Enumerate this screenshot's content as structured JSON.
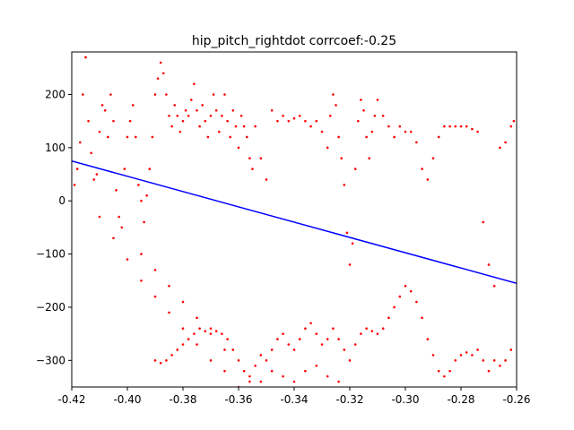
{
  "chart_data": {
    "type": "scatter",
    "title": "hip_pitch_rightdot corrcoef:-0.25",
    "xlabel": "",
    "ylabel": "",
    "xlim": [
      -0.42,
      -0.26
    ],
    "ylim": [
      -350,
      280
    ],
    "x_ticks": [
      "-0.42",
      "-0.40",
      "-0.38",
      "-0.36",
      "-0.34",
      "-0.32",
      "-0.30",
      "-0.28",
      "-0.26"
    ],
    "x_tick_values": [
      -0.42,
      -0.4,
      -0.38,
      -0.36,
      -0.34,
      -0.32,
      -0.3,
      -0.28,
      -0.26
    ],
    "y_ticks": [
      "200",
      "100",
      "0",
      "−100",
      "−200",
      "−300"
    ],
    "y_tick_values": [
      200,
      100,
      0,
      -100,
      -200,
      -300
    ],
    "grid": false,
    "colors": {
      "points": "#ff0000",
      "fit_line": "#0000ff"
    },
    "fit_line": {
      "x": [
        -0.42,
        -0.26
      ],
      "y": [
        75,
        -155
      ]
    },
    "series": [
      {
        "type": "scatter",
        "points": [
          [
            -0.419,
            30
          ],
          [
            -0.418,
            60
          ],
          [
            -0.417,
            110
          ],
          [
            -0.416,
            200
          ],
          [
            -0.415,
            270
          ],
          [
            -0.414,
            150
          ],
          [
            -0.413,
            90
          ],
          [
            -0.412,
            40
          ],
          [
            -0.411,
            50
          ],
          [
            -0.41,
            130
          ],
          [
            -0.409,
            180
          ],
          [
            -0.408,
            170
          ],
          [
            -0.407,
            120
          ],
          [
            -0.406,
            200
          ],
          [
            -0.405,
            150
          ],
          [
            -0.404,
            20
          ],
          [
            -0.403,
            -30
          ],
          [
            -0.402,
            -50
          ],
          [
            -0.401,
            60
          ],
          [
            -0.4,
            120
          ],
          [
            -0.399,
            150
          ],
          [
            -0.398,
            180
          ],
          [
            -0.397,
            120
          ],
          [
            -0.396,
            30
          ],
          [
            -0.395,
            0
          ],
          [
            -0.394,
            -40
          ],
          [
            -0.393,
            10
          ],
          [
            -0.392,
            60
          ],
          [
            -0.391,
            120
          ],
          [
            -0.39,
            200
          ],
          [
            -0.389,
            230
          ],
          [
            -0.388,
            260
          ],
          [
            -0.387,
            240
          ],
          [
            -0.386,
            200
          ],
          [
            -0.385,
            160
          ],
          [
            -0.384,
            140
          ],
          [
            -0.383,
            180
          ],
          [
            -0.382,
            160
          ],
          [
            -0.381,
            130
          ],
          [
            -0.38,
            150
          ],
          [
            -0.379,
            170
          ],
          [
            -0.378,
            160
          ],
          [
            -0.377,
            190
          ],
          [
            -0.376,
            220
          ],
          [
            -0.375,
            170
          ],
          [
            -0.374,
            140
          ],
          [
            -0.373,
            180
          ],
          [
            -0.372,
            150
          ],
          [
            -0.371,
            120
          ],
          [
            -0.37,
            160
          ],
          [
            -0.369,
            200
          ],
          [
            -0.368,
            170
          ],
          [
            -0.367,
            130
          ],
          [
            -0.366,
            160
          ],
          [
            -0.365,
            200
          ],
          [
            -0.364,
            150
          ],
          [
            -0.363,
            120
          ],
          [
            -0.362,
            170
          ],
          [
            -0.361,
            140
          ],
          [
            -0.36,
            100
          ],
          [
            -0.359,
            160
          ],
          [
            -0.358,
            140
          ],
          [
            -0.357,
            120
          ],
          [
            -0.356,
            80
          ],
          [
            -0.355,
            60
          ],
          [
            -0.354,
            140
          ],
          [
            -0.352,
            80
          ],
          [
            -0.35,
            40
          ],
          [
            -0.348,
            170
          ],
          [
            -0.346,
            150
          ],
          [
            -0.344,
            160
          ],
          [
            -0.342,
            150
          ],
          [
            -0.34,
            155
          ],
          [
            -0.338,
            160
          ],
          [
            -0.336,
            150
          ],
          [
            -0.334,
            140
          ],
          [
            -0.332,
            150
          ],
          [
            -0.33,
            130
          ],
          [
            -0.328,
            100
          ],
          [
            -0.327,
            160
          ],
          [
            -0.326,
            200
          ],
          [
            -0.325,
            180
          ],
          [
            -0.324,
            120
          ],
          [
            -0.323,
            80
          ],
          [
            -0.322,
            30
          ],
          [
            -0.321,
            -60
          ],
          [
            -0.32,
            -120
          ],
          [
            -0.319,
            -80
          ],
          [
            -0.318,
            60
          ],
          [
            -0.317,
            150
          ],
          [
            -0.316,
            190
          ],
          [
            -0.315,
            170
          ],
          [
            -0.314,
            120
          ],
          [
            -0.313,
            80
          ],
          [
            -0.312,
            130
          ],
          [
            -0.311,
            160
          ],
          [
            -0.31,
            190
          ],
          [
            -0.308,
            160
          ],
          [
            -0.306,
            140
          ],
          [
            -0.304,
            120
          ],
          [
            -0.302,
            140
          ],
          [
            -0.3,
            130
          ],
          [
            -0.298,
            130
          ],
          [
            -0.296,
            110
          ],
          [
            -0.294,
            60
          ],
          [
            -0.292,
            40
          ],
          [
            -0.29,
            80
          ],
          [
            -0.288,
            120
          ],
          [
            -0.286,
            140
          ],
          [
            -0.284,
            140
          ],
          [
            -0.282,
            140
          ],
          [
            -0.28,
            140
          ],
          [
            -0.278,
            140
          ],
          [
            -0.276,
            135
          ],
          [
            -0.274,
            130
          ],
          [
            -0.272,
            -40
          ],
          [
            -0.27,
            -120
          ],
          [
            -0.268,
            -160
          ],
          [
            -0.266,
            100
          ],
          [
            -0.264,
            110
          ],
          [
            -0.262,
            140
          ],
          [
            -0.261,
            150
          ],
          [
            -0.41,
            -30
          ],
          [
            -0.405,
            -70
          ],
          [
            -0.4,
            -110
          ],
          [
            -0.395,
            -150
          ],
          [
            -0.39,
            -180
          ],
          [
            -0.385,
            -210
          ],
          [
            -0.38,
            -240
          ],
          [
            -0.375,
            -270
          ],
          [
            -0.37,
            -300
          ],
          [
            -0.365,
            -320
          ],
          [
            -0.395,
            -100
          ],
          [
            -0.39,
            -130
          ],
          [
            -0.385,
            -160
          ],
          [
            -0.38,
            -190
          ],
          [
            -0.375,
            -220
          ],
          [
            -0.37,
            -250
          ],
          [
            -0.365,
            -280
          ],
          [
            -0.39,
            -300
          ],
          [
            -0.388,
            -305
          ],
          [
            -0.386,
            -300
          ],
          [
            -0.384,
            -290
          ],
          [
            -0.382,
            -280
          ],
          [
            -0.38,
            -270
          ],
          [
            -0.378,
            -260
          ],
          [
            -0.376,
            -250
          ],
          [
            -0.374,
            -240
          ],
          [
            -0.372,
            -245
          ],
          [
            -0.37,
            -240
          ],
          [
            -0.368,
            -245
          ],
          [
            -0.366,
            -250
          ],
          [
            -0.364,
            -260
          ],
          [
            -0.362,
            -280
          ],
          [
            -0.36,
            -300
          ],
          [
            -0.358,
            -320
          ],
          [
            -0.356,
            -330
          ],
          [
            -0.354,
            -310
          ],
          [
            -0.352,
            -290
          ],
          [
            -0.35,
            -300
          ],
          [
            -0.348,
            -280
          ],
          [
            -0.346,
            -260
          ],
          [
            -0.344,
            -250
          ],
          [
            -0.342,
            -270
          ],
          [
            -0.34,
            -280
          ],
          [
            -0.338,
            -260
          ],
          [
            -0.336,
            -240
          ],
          [
            -0.334,
            -230
          ],
          [
            -0.332,
            -250
          ],
          [
            -0.33,
            -270
          ],
          [
            -0.328,
            -260
          ],
          [
            -0.326,
            -240
          ],
          [
            -0.324,
            -260
          ],
          [
            -0.322,
            -280
          ],
          [
            -0.32,
            -300
          ],
          [
            -0.318,
            -270
          ],
          [
            -0.316,
            -250
          ],
          [
            -0.314,
            -240
          ],
          [
            -0.312,
            -245
          ],
          [
            -0.31,
            -250
          ],
          [
            -0.308,
            -240
          ],
          [
            -0.306,
            -220
          ],
          [
            -0.304,
            -200
          ],
          [
            -0.302,
            -180
          ],
          [
            -0.3,
            -160
          ],
          [
            -0.298,
            -170
          ],
          [
            -0.296,
            -190
          ],
          [
            -0.294,
            -220
          ],
          [
            -0.292,
            -260
          ],
          [
            -0.29,
            -290
          ],
          [
            -0.288,
            -320
          ],
          [
            -0.286,
            -330
          ],
          [
            -0.284,
            -320
          ],
          [
            -0.282,
            -300
          ],
          [
            -0.28,
            -290
          ],
          [
            -0.278,
            -285
          ],
          [
            -0.276,
            -290
          ],
          [
            -0.274,
            -280
          ],
          [
            -0.272,
            -300
          ],
          [
            -0.27,
            -320
          ],
          [
            -0.268,
            -300
          ],
          [
            -0.266,
            -310
          ],
          [
            -0.264,
            -300
          ],
          [
            -0.262,
            -280
          ],
          [
            -0.36,
            -350
          ],
          [
            -0.356,
            -340
          ],
          [
            -0.352,
            -340
          ],
          [
            -0.348,
            -320
          ],
          [
            -0.344,
            -330
          ],
          [
            -0.34,
            -340
          ],
          [
            -0.336,
            -320
          ],
          [
            -0.332,
            -310
          ],
          [
            -0.328,
            -330
          ],
          [
            -0.324,
            -340
          ]
        ]
      }
    ]
  }
}
